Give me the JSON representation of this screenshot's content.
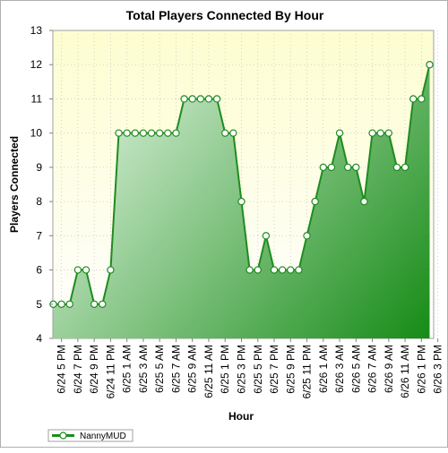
{
  "chart_data": {
    "type": "area",
    "title": "Total Players Connected By Hour",
    "xlabel": "Hour",
    "ylabel": "Players Connected",
    "ylim": [
      4,
      13
    ],
    "yticks": [
      "4",
      "5",
      "6",
      "7",
      "8",
      "9",
      "10",
      "11",
      "12",
      "13"
    ],
    "grid": true,
    "legend_position": "bottom-left",
    "x_tick_labels": [
      "6/24 5 PM",
      "6/24 7 PM",
      "6/24 9 PM",
      "6/24 11 PM",
      "6/25 1 AM",
      "6/25 3 AM",
      "6/25 5 AM",
      "6/25 7 AM",
      "6/25 9 AM",
      "6/25 11 AM",
      "6/25 1 PM",
      "6/25 3 PM",
      "6/25 5 PM",
      "6/25 7 PM",
      "6/25 9 PM",
      "6/25 11 PM",
      "6/26 1 AM",
      "6/26 3 AM",
      "6/26 5 AM",
      "6/26 7 AM",
      "6/26 9 AM",
      "6/26 11 AM",
      "6/26 1 PM",
      "6/26 3 PM"
    ],
    "series": [
      {
        "name": "NannyMUD",
        "color": "#2a8a2a",
        "values": [
          5,
          5,
          5,
          6,
          6,
          5,
          5,
          6,
          10,
          10,
          10,
          10,
          10,
          10,
          10,
          10,
          11,
          11,
          11,
          11,
          11,
          10,
          10,
          8,
          6,
          6,
          7,
          6,
          6,
          6,
          6,
          7,
          8,
          9,
          9,
          10,
          9,
          9,
          8,
          10,
          10,
          10,
          9,
          9,
          11,
          11,
          12
        ]
      }
    ],
    "colors": {
      "plot_background_top": "#fdfdd0",
      "plot_background_bottom": "#ffffff",
      "area_light": "#d6eed6",
      "area_dark": "#008000",
      "line": "#1e8c1e",
      "marker_fill": "#ffffff"
    }
  }
}
